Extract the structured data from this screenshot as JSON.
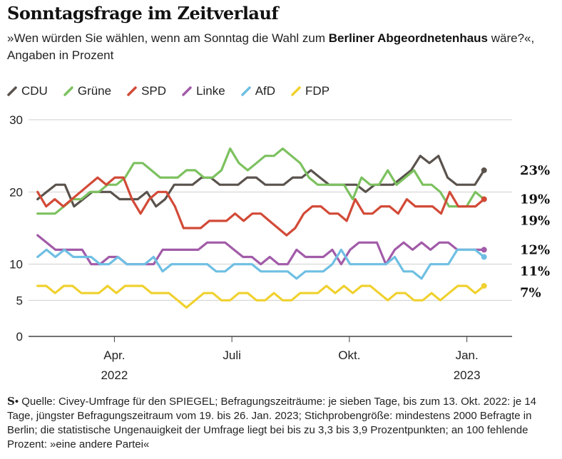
{
  "header": {
    "title": "Sonntagsfrage im Zeitverlauf",
    "subtitle_pre": "»Wen würden Sie wählen, wenn am Sonntag die Wahl zum ",
    "subtitle_bold": "Berliner Abgeordnetenhaus",
    "subtitle_post": " wäre?«, Angaben in Prozent"
  },
  "footer": {
    "logo": "S",
    "text": "• Quelle: Civey-Umfrage für den SPIEGEL; Befragungszeiträume: je sieben Tage, bis zum 13. Okt. 2022: je 14 Tage, jüngster Befragungszeitraum vom 19. bis 26. Jan. 2023; Stichprobengröße: mindestens 2000 Befragte in Berlin; die statistische Ungenauigkeit der Umfrage liegt bei bis zu 3,3 bis 3,9 Prozentpunkten; an 100 fehlende Prozent: »eine andere Partei«"
  },
  "chart_data": {
    "type": "line",
    "y_ticks": [
      0,
      5,
      10,
      20,
      30
    ],
    "ylim": [
      0,
      30
    ],
    "x_ticks": [
      {
        "x": 8,
        "label": "Apr.",
        "sub": "2022"
      },
      {
        "x": 21,
        "label": "Juli",
        "sub": ""
      },
      {
        "x": 34,
        "label": "Okt.",
        "sub": ""
      },
      {
        "x": 47,
        "label": "Jan.",
        "sub": "2023"
      }
    ],
    "xlim": [
      -1.5,
      52
    ],
    "series": [
      {
        "name": "CDU",
        "color": "#5a524c",
        "end_label": "23%",
        "values": [
          19,
          20,
          21,
          21,
          18,
          19,
          20,
          20,
          20,
          19,
          19,
          19,
          20,
          18,
          19,
          21,
          21,
          21,
          22,
          22,
          21,
          21,
          21,
          22,
          22,
          21,
          21,
          21,
          22,
          22,
          23,
          22,
          21,
          21,
          21,
          21,
          20,
          21,
          21,
          21,
          22,
          23,
          25,
          24,
          25,
          22,
          21,
          21,
          21,
          23
        ]
      },
      {
        "name": "Grüne",
        "color": "#7cc15f",
        "end_label": "19%",
        "values": [
          17,
          17,
          17,
          18,
          19,
          19,
          20,
          20,
          21,
          21,
          22,
          24,
          24,
          23,
          22,
          22,
          22,
          23,
          23,
          22,
          22,
          23,
          26,
          24,
          23,
          24,
          25,
          25,
          26,
          25,
          24,
          22,
          21,
          21,
          21,
          21,
          19,
          22,
          21,
          21,
          23,
          21,
          22,
          23,
          21,
          21,
          20,
          18,
          18,
          18,
          20,
          19
        ]
      },
      {
        "name": "SPD",
        "color": "#d24a37",
        "end_label": "19%",
        "values": [
          20,
          18,
          19,
          18,
          19,
          20,
          21,
          22,
          21,
          22,
          22,
          19,
          17,
          19,
          20,
          20,
          18,
          15,
          15,
          15,
          16,
          16,
          16,
          17,
          16,
          17,
          17,
          16,
          15,
          14,
          15,
          17,
          18,
          18,
          17,
          17,
          16,
          19,
          17,
          17,
          18,
          18,
          17,
          19,
          18,
          18,
          18,
          17,
          20,
          18,
          18,
          18,
          19
        ]
      },
      {
        "name": "Linke",
        "color": "#a25ba8",
        "end_label": "12%",
        "values": [
          14,
          13,
          12,
          12,
          12,
          12,
          10,
          10,
          11,
          11,
          10,
          10,
          10,
          10,
          12,
          12,
          12,
          12,
          12,
          13,
          13,
          13,
          12,
          11,
          11,
          10,
          11,
          10,
          10,
          12,
          11,
          11,
          11,
          12,
          10,
          12,
          13,
          13,
          13,
          10,
          12,
          13,
          12,
          13,
          12,
          13,
          13,
          12,
          12,
          12,
          12
        ]
      },
      {
        "name": "AfD",
        "color": "#6fbfe3",
        "end_label": "11%",
        "values": [
          11,
          12,
          11,
          12,
          11,
          11,
          11,
          10,
          10,
          11,
          10,
          10,
          10,
          11,
          9,
          10,
          10,
          10,
          10,
          10,
          9,
          9,
          10,
          10,
          10,
          9,
          9,
          9,
          9,
          8,
          9,
          9,
          9,
          10,
          12,
          10,
          10,
          10,
          10,
          10,
          11,
          9,
          9,
          8,
          10,
          10,
          10,
          12,
          12,
          12,
          11
        ]
      },
      {
        "name": "FDP",
        "color": "#f0d12f",
        "end_label": "7%",
        "values": [
          7,
          7,
          6,
          7,
          7,
          6,
          6,
          6,
          7,
          6,
          7,
          7,
          7,
          6,
          6,
          6,
          5,
          4,
          5,
          6,
          6,
          5,
          5,
          6,
          6,
          5,
          5,
          6,
          5,
          5,
          6,
          6,
          6,
          7,
          6,
          7,
          6,
          7,
          7,
          6,
          5,
          6,
          6,
          5,
          5,
          6,
          5,
          6,
          7,
          7,
          6,
          7
        ]
      }
    ]
  }
}
